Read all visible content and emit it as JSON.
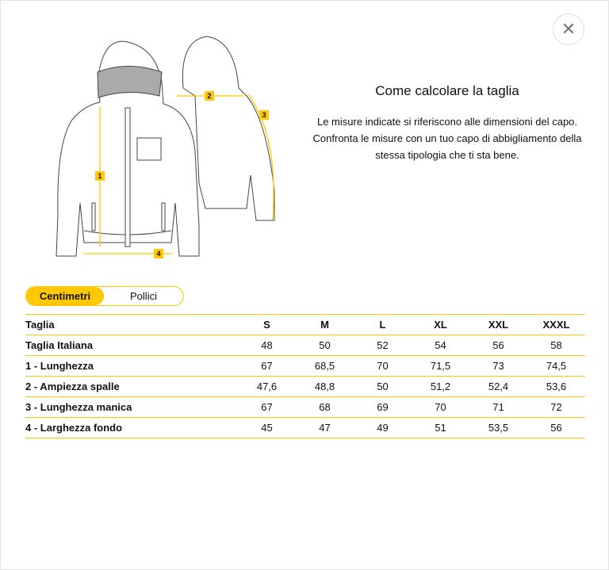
{
  "close_icon": "close-icon",
  "info": {
    "title": "Come calcolare la taglia",
    "text": "Le misure indicate si riferiscono alle dimensioni del capo. Confronta le misure con un tuo capo di abbigliamento della stessa tipologia che ti sta bene."
  },
  "illustration": {
    "markers": [
      "1",
      "2",
      "3",
      "4"
    ],
    "accent": "#ffc800"
  },
  "units": {
    "active": "Centimetri",
    "inactive": "Pollici"
  },
  "table": {
    "headers": [
      "Taglia",
      "S",
      "M",
      "L",
      "XL",
      "XXL",
      "XXXL"
    ],
    "rows": [
      {
        "label": "Taglia Italiana",
        "values": [
          "48",
          "50",
          "52",
          "54",
          "56",
          "58"
        ]
      },
      {
        "label": "1 - Lunghezza",
        "values": [
          "67",
          "68,5",
          "70",
          "71,5",
          "73",
          "74,5"
        ]
      },
      {
        "label": "2 - Ampiezza spalle",
        "values": [
          "47,6",
          "48,8",
          "50",
          "51,2",
          "52,4",
          "53,6"
        ]
      },
      {
        "label": "3 - Lunghezza manica",
        "values": [
          "67",
          "68",
          "69",
          "70",
          "71",
          "72"
        ]
      },
      {
        "label": "4 - Larghezza fondo",
        "values": [
          "45",
          "47",
          "49",
          "51",
          "53,5",
          "56"
        ]
      }
    ]
  }
}
